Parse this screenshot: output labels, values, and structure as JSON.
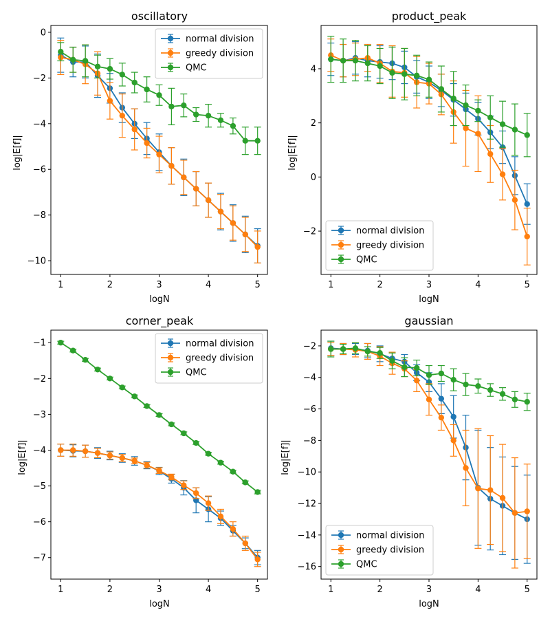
{
  "chart_data": [
    {
      "type": "line",
      "title": "oscillatory",
      "xlabel": "logN",
      "ylabel": "log|E[f]|",
      "xlim": [
        0.8,
        5.2
      ],
      "ylim": [
        -10.6,
        0.3
      ],
      "xticks": [
        1,
        2,
        3,
        4,
        5
      ],
      "yticks": [
        0,
        -2,
        -4,
        -6,
        -8,
        -10
      ],
      "ytick_labels": [
        "0",
        "−2",
        "−4",
        "−6",
        "−8",
        "−10"
      ],
      "legend_position": "top-right",
      "x": [
        1.0,
        1.25,
        1.5,
        1.75,
        2.0,
        2.25,
        2.5,
        2.75,
        3.0,
        3.25,
        3.5,
        3.75,
        4.0,
        4.25,
        4.5,
        4.75,
        5.0
      ],
      "series": [
        {
          "name": "normal division",
          "color": "#1f77b4",
          "values": [
            -1.0,
            -1.3,
            -1.3,
            -1.9,
            -2.45,
            -3.3,
            -4.0,
            -4.65,
            -5.25,
            -5.85,
            -6.35,
            -6.85,
            -7.35,
            -7.85,
            -8.35,
            -8.85,
            -9.35
          ],
          "err": [
            0.75,
            0.65,
            0.7,
            0.95,
            0.65,
            0.65,
            0.65,
            0.7,
            0.8,
            0.8,
            0.8,
            0.75,
            0.75,
            0.8,
            0.8,
            0.8,
            0.75
          ]
        },
        {
          "name": "greedy division",
          "color": "#ff7f0e",
          "values": [
            -1.1,
            -1.2,
            -1.4,
            -1.8,
            -3.0,
            -3.65,
            -4.25,
            -4.85,
            -5.35,
            -5.85,
            -6.35,
            -6.85,
            -7.35,
            -7.85,
            -8.35,
            -8.85,
            -9.4
          ],
          "err": [
            0.75,
            0.55,
            0.85,
            0.95,
            0.8,
            0.95,
            0.9,
            0.65,
            0.8,
            0.8,
            0.75,
            0.75,
            0.75,
            0.75,
            0.75,
            0.75,
            0.7
          ]
        },
        {
          "name": "QMC",
          "color": "#2ca02c",
          "values": [
            -0.85,
            -1.2,
            -1.25,
            -1.5,
            -1.6,
            -1.85,
            -2.2,
            -2.5,
            -2.75,
            -3.25,
            -3.2,
            -3.6,
            -3.65,
            -3.85,
            -4.1,
            -4.75,
            -4.75
          ],
          "err": [
            0.4,
            0.55,
            0.7,
            0.5,
            0.45,
            0.5,
            0.45,
            0.55,
            0.45,
            0.8,
            0.5,
            0.3,
            0.5,
            0.3,
            0.35,
            0.6,
            0.6
          ]
        }
      ]
    },
    {
      "type": "line",
      "title": "product_peak",
      "xlabel": "logN",
      "ylabel": "log|E[f]|",
      "xlim": [
        0.8,
        5.2
      ],
      "ylim": [
        -3.6,
        5.6
      ],
      "xticks": [
        1,
        2,
        3,
        4,
        5
      ],
      "yticks": [
        4,
        2,
        0,
        -2
      ],
      "ytick_labels": [
        "4",
        "2",
        "0",
        "−2"
      ],
      "legend_position": "bottom-left",
      "x": [
        1.0,
        1.25,
        1.5,
        1.75,
        2.0,
        2.25,
        2.5,
        2.75,
        3.0,
        3.25,
        3.5,
        3.75,
        4.0,
        4.25,
        4.5,
        4.75,
        5.0
      ],
      "series": [
        {
          "name": "normal division",
          "color": "#1f77b4",
          "values": [
            4.35,
            4.3,
            4.4,
            4.3,
            4.25,
            4.2,
            4.05,
            3.7,
            3.5,
            3.2,
            2.85,
            2.5,
            2.15,
            1.65,
            1.1,
            0.05,
            -1.0
          ],
          "err": [
            0.6,
            0.6,
            0.6,
            0.6,
            0.6,
            0.6,
            0.6,
            0.6,
            0.6,
            0.6,
            0.6,
            0.6,
            0.6,
            0.6,
            0.6,
            0.7,
            0.75
          ]
        },
        {
          "name": "greedy division",
          "color": "#ff7f0e",
          "values": [
            4.5,
            4.3,
            4.35,
            4.4,
            4.2,
            3.9,
            3.85,
            3.5,
            3.45,
            3.05,
            2.4,
            1.8,
            1.6,
            0.85,
            0.1,
            -0.85,
            -2.2
          ],
          "err": [
            0.6,
            0.6,
            0.6,
            0.5,
            0.7,
            0.95,
            0.9,
            0.95,
            0.75,
            0.75,
            1.15,
            1.4,
            1.4,
            1.05,
            0.95,
            1.1,
            1.05
          ]
        },
        {
          "name": "QMC",
          "color": "#2ca02c",
          "values": [
            4.35,
            4.3,
            4.3,
            4.2,
            4.1,
            3.85,
            3.8,
            3.75,
            3.6,
            3.25,
            2.9,
            2.65,
            2.45,
            2.2,
            1.95,
            1.75,
            1.55
          ],
          "err": [
            0.85,
            0.8,
            0.75,
            0.65,
            0.65,
            0.95,
            0.95,
            0.75,
            0.65,
            0.85,
            1.0,
            0.75,
            0.4,
            0.8,
            0.85,
            0.95,
            0.8
          ]
        }
      ]
    },
    {
      "type": "line",
      "title": "corner_peak",
      "xlabel": "logN",
      "ylabel": "log|E[f]|",
      "xlim": [
        0.8,
        5.2
      ],
      "ylim": [
        -7.6,
        -0.65
      ],
      "xticks": [
        1,
        2,
        3,
        4,
        5
      ],
      "yticks": [
        -1,
        -2,
        -3,
        -4,
        -5,
        -6,
        -7
      ],
      "ytick_labels": [
        "−1",
        "−2",
        "−3",
        "−4",
        "−5",
        "−6",
        "−7"
      ],
      "legend_position": "top-right",
      "x": [
        1.0,
        1.25,
        1.5,
        1.75,
        2.0,
        2.25,
        2.5,
        2.75,
        3.0,
        3.25,
        3.5,
        3.75,
        4.0,
        4.25,
        4.5,
        4.75,
        5.0
      ],
      "series": [
        {
          "name": "normal division",
          "color": "#1f77b4",
          "values": [
            -4.0,
            -4.02,
            -4.03,
            -4.08,
            -4.15,
            -4.22,
            -4.3,
            -4.42,
            -4.58,
            -4.8,
            -5.05,
            -5.4,
            -5.65,
            -5.9,
            -6.25,
            -6.6,
            -7.0
          ],
          "err": [
            0.17,
            0.17,
            0.17,
            0.15,
            0.12,
            0.12,
            0.12,
            0.1,
            0.1,
            0.12,
            0.2,
            0.35,
            0.35,
            0.2,
            0.15,
            0.15,
            0.2
          ]
        },
        {
          "name": "greedy division",
          "color": "#ff7f0e",
          "values": [
            -4.0,
            -4.0,
            -4.03,
            -4.08,
            -4.15,
            -4.22,
            -4.3,
            -4.42,
            -4.57,
            -4.75,
            -4.98,
            -5.2,
            -5.48,
            -5.85,
            -6.2,
            -6.6,
            -7.05
          ],
          "err": [
            0.17,
            0.17,
            0.17,
            0.13,
            0.1,
            0.1,
            0.08,
            0.08,
            0.08,
            0.08,
            0.12,
            0.15,
            0.2,
            0.2,
            0.2,
            0.2,
            0.2
          ]
        },
        {
          "name": "QMC",
          "color": "#2ca02c",
          "values": [
            -1.0,
            -1.22,
            -1.48,
            -1.75,
            -2.0,
            -2.25,
            -2.5,
            -2.77,
            -3.02,
            -3.28,
            -3.53,
            -3.8,
            -4.1,
            -4.35,
            -4.6,
            -4.9,
            -5.17
          ],
          "err": [
            0.04,
            0.04,
            0.04,
            0.04,
            0.04,
            0.04,
            0.04,
            0.04,
            0.04,
            0.04,
            0.04,
            0.04,
            0.04,
            0.04,
            0.04,
            0.04,
            0.05
          ]
        }
      ]
    },
    {
      "type": "line",
      "title": "gaussian",
      "xlabel": "logN",
      "ylabel": "log|E[f]|",
      "xlim": [
        0.8,
        5.2
      ],
      "ylim": [
        -16.8,
        -1.0
      ],
      "xticks": [
        1,
        2,
        3,
        4,
        5
      ],
      "yticks": [
        -2,
        -4,
        -6,
        -8,
        -10,
        -12,
        -14,
        -16
      ],
      "ytick_labels": [
        "−2",
        "−4",
        "−6",
        "−8",
        "−10",
        "−12",
        "−14",
        "−16"
      ],
      "legend_position": "bottom-left",
      "x": [
        1.0,
        1.25,
        1.5,
        1.75,
        2.0,
        2.25,
        2.5,
        2.75,
        3.0,
        3.25,
        3.5,
        3.75,
        4.0,
        4.25,
        4.5,
        4.75,
        5.0
      ],
      "series": [
        {
          "name": "normal division",
          "color": "#1f77b4",
          "values": [
            -2.15,
            -2.2,
            -2.2,
            -2.3,
            -2.5,
            -2.8,
            -3.0,
            -3.7,
            -4.3,
            -5.35,
            -6.5,
            -8.45,
            -11.0,
            -11.7,
            -12.15,
            -12.6,
            -13.0
          ],
          "err": [
            0.45,
            0.35,
            0.35,
            0.45,
            0.5,
            0.4,
            0.45,
            0.5,
            0.6,
            0.95,
            1.35,
            2.05,
            3.65,
            3.25,
            3.1,
            2.95,
            2.8
          ]
        },
        {
          "name": "greedy division",
          "color": "#ff7f0e",
          "values": [
            -2.2,
            -2.2,
            -2.25,
            -2.35,
            -2.65,
            -3.1,
            -3.45,
            -4.2,
            -5.4,
            -6.55,
            -8.0,
            -9.75,
            -11.05,
            -11.15,
            -11.65,
            -12.6,
            -12.5
          ],
          "err": [
            0.4,
            0.35,
            0.45,
            0.5,
            0.6,
            0.7,
            0.5,
            0.7,
            1.0,
            0.8,
            1.0,
            2.4,
            3.8,
            3.45,
            3.4,
            3.5,
            3.0
          ]
        },
        {
          "name": "QMC",
          "color": "#2ca02c",
          "values": [
            -2.2,
            -2.2,
            -2.15,
            -2.35,
            -2.45,
            -2.95,
            -3.35,
            -3.4,
            -3.85,
            -3.75,
            -4.15,
            -4.45,
            -4.55,
            -4.8,
            -5.05,
            -5.4,
            -5.55
          ],
          "err": [
            0.5,
            0.3,
            0.35,
            0.3,
            0.35,
            0.5,
            0.6,
            0.5,
            0.6,
            0.5,
            0.7,
            0.7,
            0.45,
            0.4,
            0.4,
            0.5,
            0.55
          ]
        }
      ]
    }
  ]
}
